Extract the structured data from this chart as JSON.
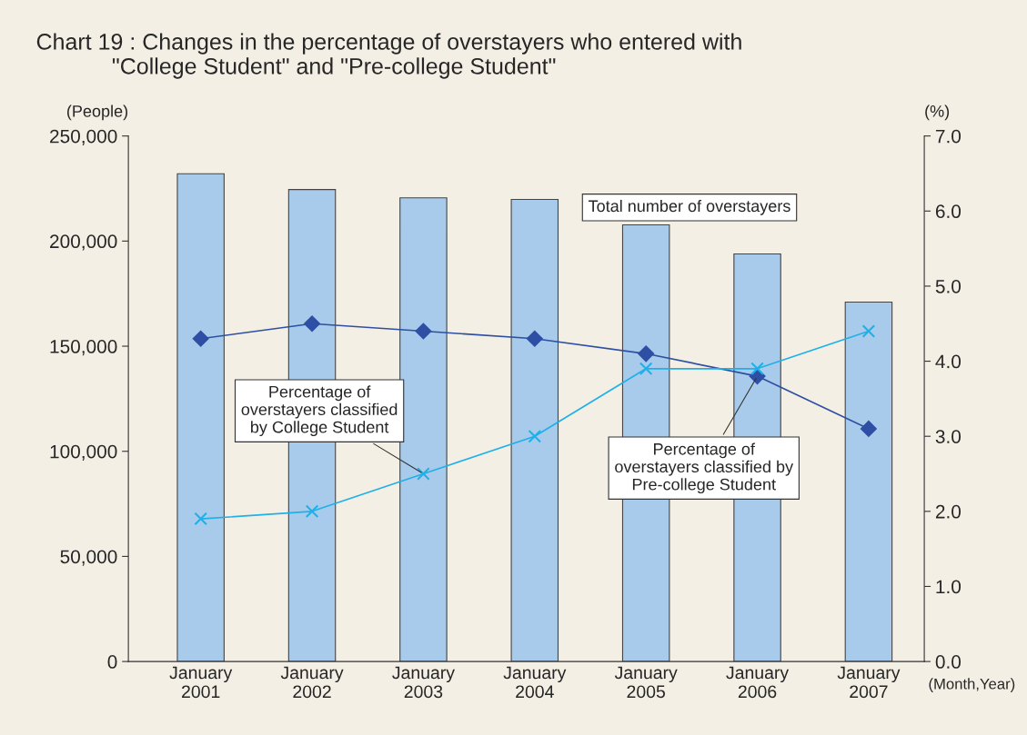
{
  "chart_data": {
    "type": "bar",
    "title": "Chart 19 : Changes in the percentage of overstayers who entered with\n            \"College Student\" and \"Pre-college Student\"",
    "xlabel": "(Month,Year)",
    "ylabel": "(People)",
    "y2label": "(%)",
    "categories": [
      "January\n2001",
      "January\n2002",
      "January\n2003",
      "January\n2004",
      "January\n2005",
      "January\n2006",
      "January\n2007"
    ],
    "series": [
      {
        "name": "Total number of overstayers",
        "color": "#a8cbeb",
        "values": [
          232000,
          224500,
          220600,
          219800,
          207700,
          193900,
          171000
        ]
      },
      {
        "name": "Percentage of\noverstayers classified by\nPre-college Student",
        "type": "line",
        "axis": "y2",
        "marker": "diamond",
        "color": "#2e4fa3",
        "values": [
          4.3,
          4.5,
          4.4,
          4.3,
          4.1,
          3.8,
          3.1
        ]
      },
      {
        "name": "Percentage of\noverstayers classified\nby College Student",
        "type": "line",
        "axis": "y2",
        "marker": "cross",
        "color": "#1fb0e8",
        "values": [
          1.9,
          2.0,
          2.5,
          3.0,
          3.9,
          3.9,
          4.4
        ]
      }
    ],
    "ylim": [
      0,
      250000
    ],
    "yticks": [
      0,
      {
        "value": 50000,
        "label": "50,000"
      },
      {
        "value": 100000,
        "label": "100,000"
      },
      {
        "value": 150000,
        "label": "150,000"
      },
      {
        "value": 200000,
        "label": "200,000"
      },
      {
        "value": 250000,
        "label": "250,000"
      }
    ],
    "y2lim": [
      0,
      7
    ],
    "y2ticks": [
      {
        "value": 0,
        "label": "0.0"
      },
      {
        "value": 1,
        "label": "1.0"
      },
      {
        "value": 2,
        "label": "2.0"
      },
      {
        "value": 3,
        "label": "3.0"
      },
      {
        "value": 4,
        "label": "4.0"
      },
      {
        "value": 5,
        "label": "5.0"
      },
      {
        "value": 6,
        "label": "6.0"
      },
      {
        "value": 7,
        "label": "7.0"
      }
    ],
    "grid": false,
    "legend": false
  }
}
